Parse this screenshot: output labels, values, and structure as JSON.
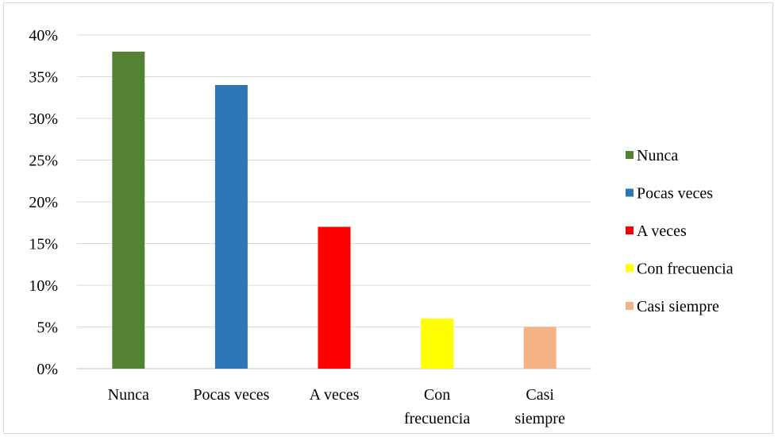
{
  "chart_data": {
    "type": "bar",
    "title": "",
    "xlabel": "",
    "ylabel": "",
    "categories": [
      "Nunca",
      "Pocas veces",
      "A veces",
      "Con frecuencia",
      "Casi siempre"
    ],
    "category_lines": [
      [
        "Nunca"
      ],
      [
        "Pocas veces"
      ],
      [
        "A veces"
      ],
      [
        "Con",
        "frecuencia"
      ],
      [
        "Casi",
        "siempre"
      ]
    ],
    "values": [
      0.38,
      0.34,
      0.17,
      0.06,
      0.05
    ],
    "colors": [
      "#548235",
      "#2e75b6",
      "#ff0000",
      "#ffff00",
      "#f4b183"
    ],
    "ylim": [
      0,
      0.4
    ],
    "yticks": [
      "0%",
      "5%",
      "10%",
      "15%",
      "20%",
      "25%",
      "30%",
      "35%",
      "40%"
    ],
    "y_format": "percent",
    "grid": true,
    "legend_position": "right",
    "legend": [
      "Nunca",
      "Pocas veces",
      "A veces",
      "Con frecuencia",
      "Casi siempre"
    ]
  }
}
